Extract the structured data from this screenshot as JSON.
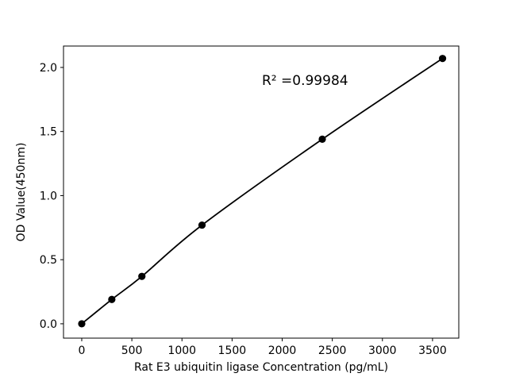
{
  "figure": {
    "background": "#ffffff"
  },
  "chart_data": {
    "type": "line",
    "title": "",
    "xlabel": "Rat E3 ubiquitin ligase Concentration (pg/mL)",
    "ylabel": "OD Value(450nm)",
    "x": [
      0,
      300,
      600,
      1200,
      2400,
      3600
    ],
    "y": [
      0.0,
      0.19,
      0.37,
      0.77,
      1.44,
      2.07
    ],
    "xticks": {
      "values": [
        0,
        500,
        1000,
        1500,
        2000,
        2500,
        3000,
        3500
      ],
      "labels": [
        "0",
        "500",
        "1000",
        "1500",
        "2000",
        "2500",
        "3000",
        "3500"
      ]
    },
    "yticks": {
      "values": [
        0.0,
        0.5,
        1.0,
        1.5,
        2.0
      ],
      "labels": [
        "0.0",
        "0.5",
        "1.0",
        "1.5",
        "2.0"
      ]
    },
    "xlim": [
      -182,
      3762
    ],
    "ylim": [
      -0.112,
      2.167
    ],
    "grid": false,
    "legend": "none",
    "smooth_curve": true,
    "marker": "circle",
    "annotation": {
      "text": "R² =0.99984",
      "x": 1800,
      "y": 1.86
    },
    "colors": {
      "line": "#000000",
      "marker": "#000000",
      "text": "#000000",
      "spine": "#000000",
      "background": "#ffffff"
    }
  }
}
